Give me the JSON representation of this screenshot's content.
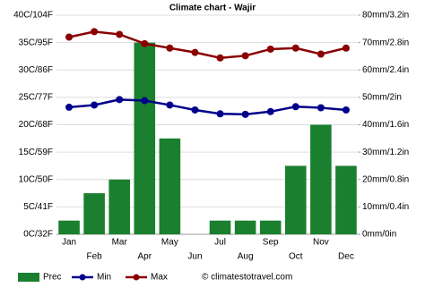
{
  "chart_data": {
    "type": "combo",
    "title": "Climate chart - Wajir",
    "categories": [
      "Jan",
      "Feb",
      "Mar",
      "Apr",
      "May",
      "Jun",
      "Jul",
      "Aug",
      "Sep",
      "Oct",
      "Nov",
      "Dec"
    ],
    "series": [
      {
        "name": "Prec",
        "type": "bar",
        "axis": "y2",
        "color": "#1a7f2e",
        "values": [
          5,
          15,
          20,
          70,
          35,
          0,
          5,
          5,
          5,
          25,
          40,
          25
        ]
      },
      {
        "name": "Min",
        "type": "line",
        "color": "#00008b",
        "values": [
          23.2,
          23.6,
          24.6,
          24.4,
          23.6,
          22.7,
          22,
          21.9,
          22.4,
          23.3,
          23.1,
          22.7
        ]
      },
      {
        "name": "Max",
        "type": "line",
        "color": "#8b0000",
        "values": [
          36,
          37,
          36.5,
          34.8,
          34,
          33.2,
          32.2,
          32.6,
          33.8,
          34,
          32.9,
          34
        ]
      }
    ],
    "ylim": [
      0,
      40
    ],
    "yticks": [
      {
        "value": 0,
        "label": "0C/32F"
      },
      {
        "value": 5,
        "label": "5C/41F"
      },
      {
        "value": 10,
        "label": "10C/50F"
      },
      {
        "value": 15,
        "label": "15C/59F"
      },
      {
        "value": 20,
        "label": "20C/68F"
      },
      {
        "value": 25,
        "label": "25C/77F"
      },
      {
        "value": 30,
        "label": "30C/86F"
      },
      {
        "value": 35,
        "label": "35C/95F"
      },
      {
        "value": 40,
        "label": "40C/104F"
      }
    ],
    "y2lim": [
      0,
      80
    ],
    "y2ticks": [
      {
        "value": 0,
        "label": "0mm/0in"
      },
      {
        "value": 10,
        "label": "10mm/0.4in"
      },
      {
        "value": 20,
        "label": "20mm/0.8in"
      },
      {
        "value": 30,
        "label": "30mm/1.2in"
      },
      {
        "value": 40,
        "label": "40mm/1.6in"
      },
      {
        "value": 50,
        "label": "50mm/2in"
      },
      {
        "value": 60,
        "label": "60mm/2.4in"
      },
      {
        "value": 70,
        "label": "70mm/2.8in"
      },
      {
        "value": 80,
        "label": "80mm/3.2in"
      }
    ],
    "grid": true,
    "source": "© climatestotravel.com"
  }
}
